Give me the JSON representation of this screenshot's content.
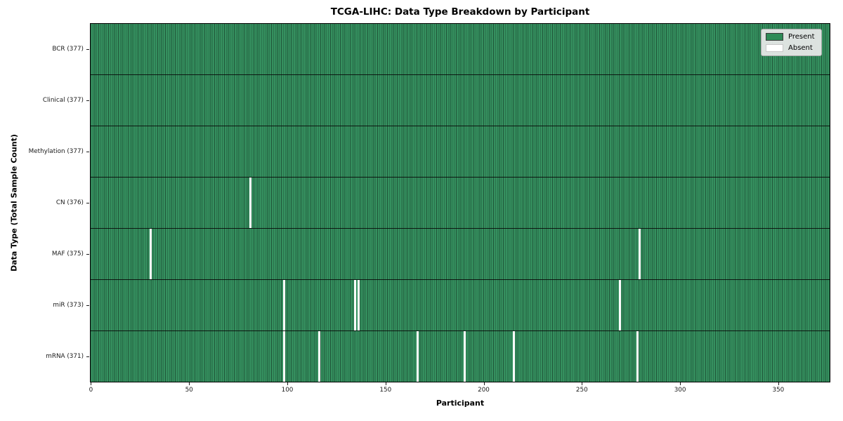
{
  "chart_data": {
    "type": "heatmap",
    "title": "TCGA-LIHC: Data Type Breakdown by Participant",
    "xlabel": "Participant",
    "ylabel": "Data Type (Total Sample Count)",
    "x_ticks": [
      0,
      50,
      100,
      150,
      200,
      250,
      300,
      350
    ],
    "n_participants": 377,
    "x_range": [
      0,
      377
    ],
    "grid": false,
    "legend": {
      "position": "upper right",
      "entries": [
        {
          "label": "Present",
          "color": "#2e8b57",
          "border": "#3a3a3a"
        },
        {
          "label": "Absent",
          "color": "#ffffff",
          "border": "#c8c8c8"
        }
      ]
    },
    "colors": {
      "present": "#2e8b57",
      "absent": "#ffffff",
      "cell_edge": "#1f5c3d",
      "row_separator": "#1a1a1a",
      "background": "#ffffff"
    },
    "rows": [
      {
        "data_type": "BCR",
        "label": "BCR (377)",
        "total_samples": 377,
        "present_count": 377,
        "absent_participants": []
      },
      {
        "data_type": "Clinical",
        "label": "Clinical (377)",
        "total_samples": 377,
        "present_count": 377,
        "absent_participants": []
      },
      {
        "data_type": "Methylation",
        "label": "Methylation (377)",
        "total_samples": 377,
        "present_count": 377,
        "absent_participants": []
      },
      {
        "data_type": "CN",
        "label": "CN (376)",
        "total_samples": 376,
        "present_count": 376,
        "absent_participants": [
          81
        ]
      },
      {
        "data_type": "MAF",
        "label": "MAF (375)",
        "total_samples": 375,
        "present_count": 375,
        "absent_participants": [
          30,
          279
        ]
      },
      {
        "data_type": "miR",
        "label": "miR (373)",
        "total_samples": 373,
        "present_count": 373,
        "absent_participants": [
          98,
          134,
          136,
          269
        ]
      },
      {
        "data_type": "mRNA",
        "label": "mRNA (371)",
        "total_samples": 371,
        "present_count": 371,
        "absent_participants": [
          98,
          116,
          166,
          190,
          215,
          278
        ]
      }
    ]
  }
}
